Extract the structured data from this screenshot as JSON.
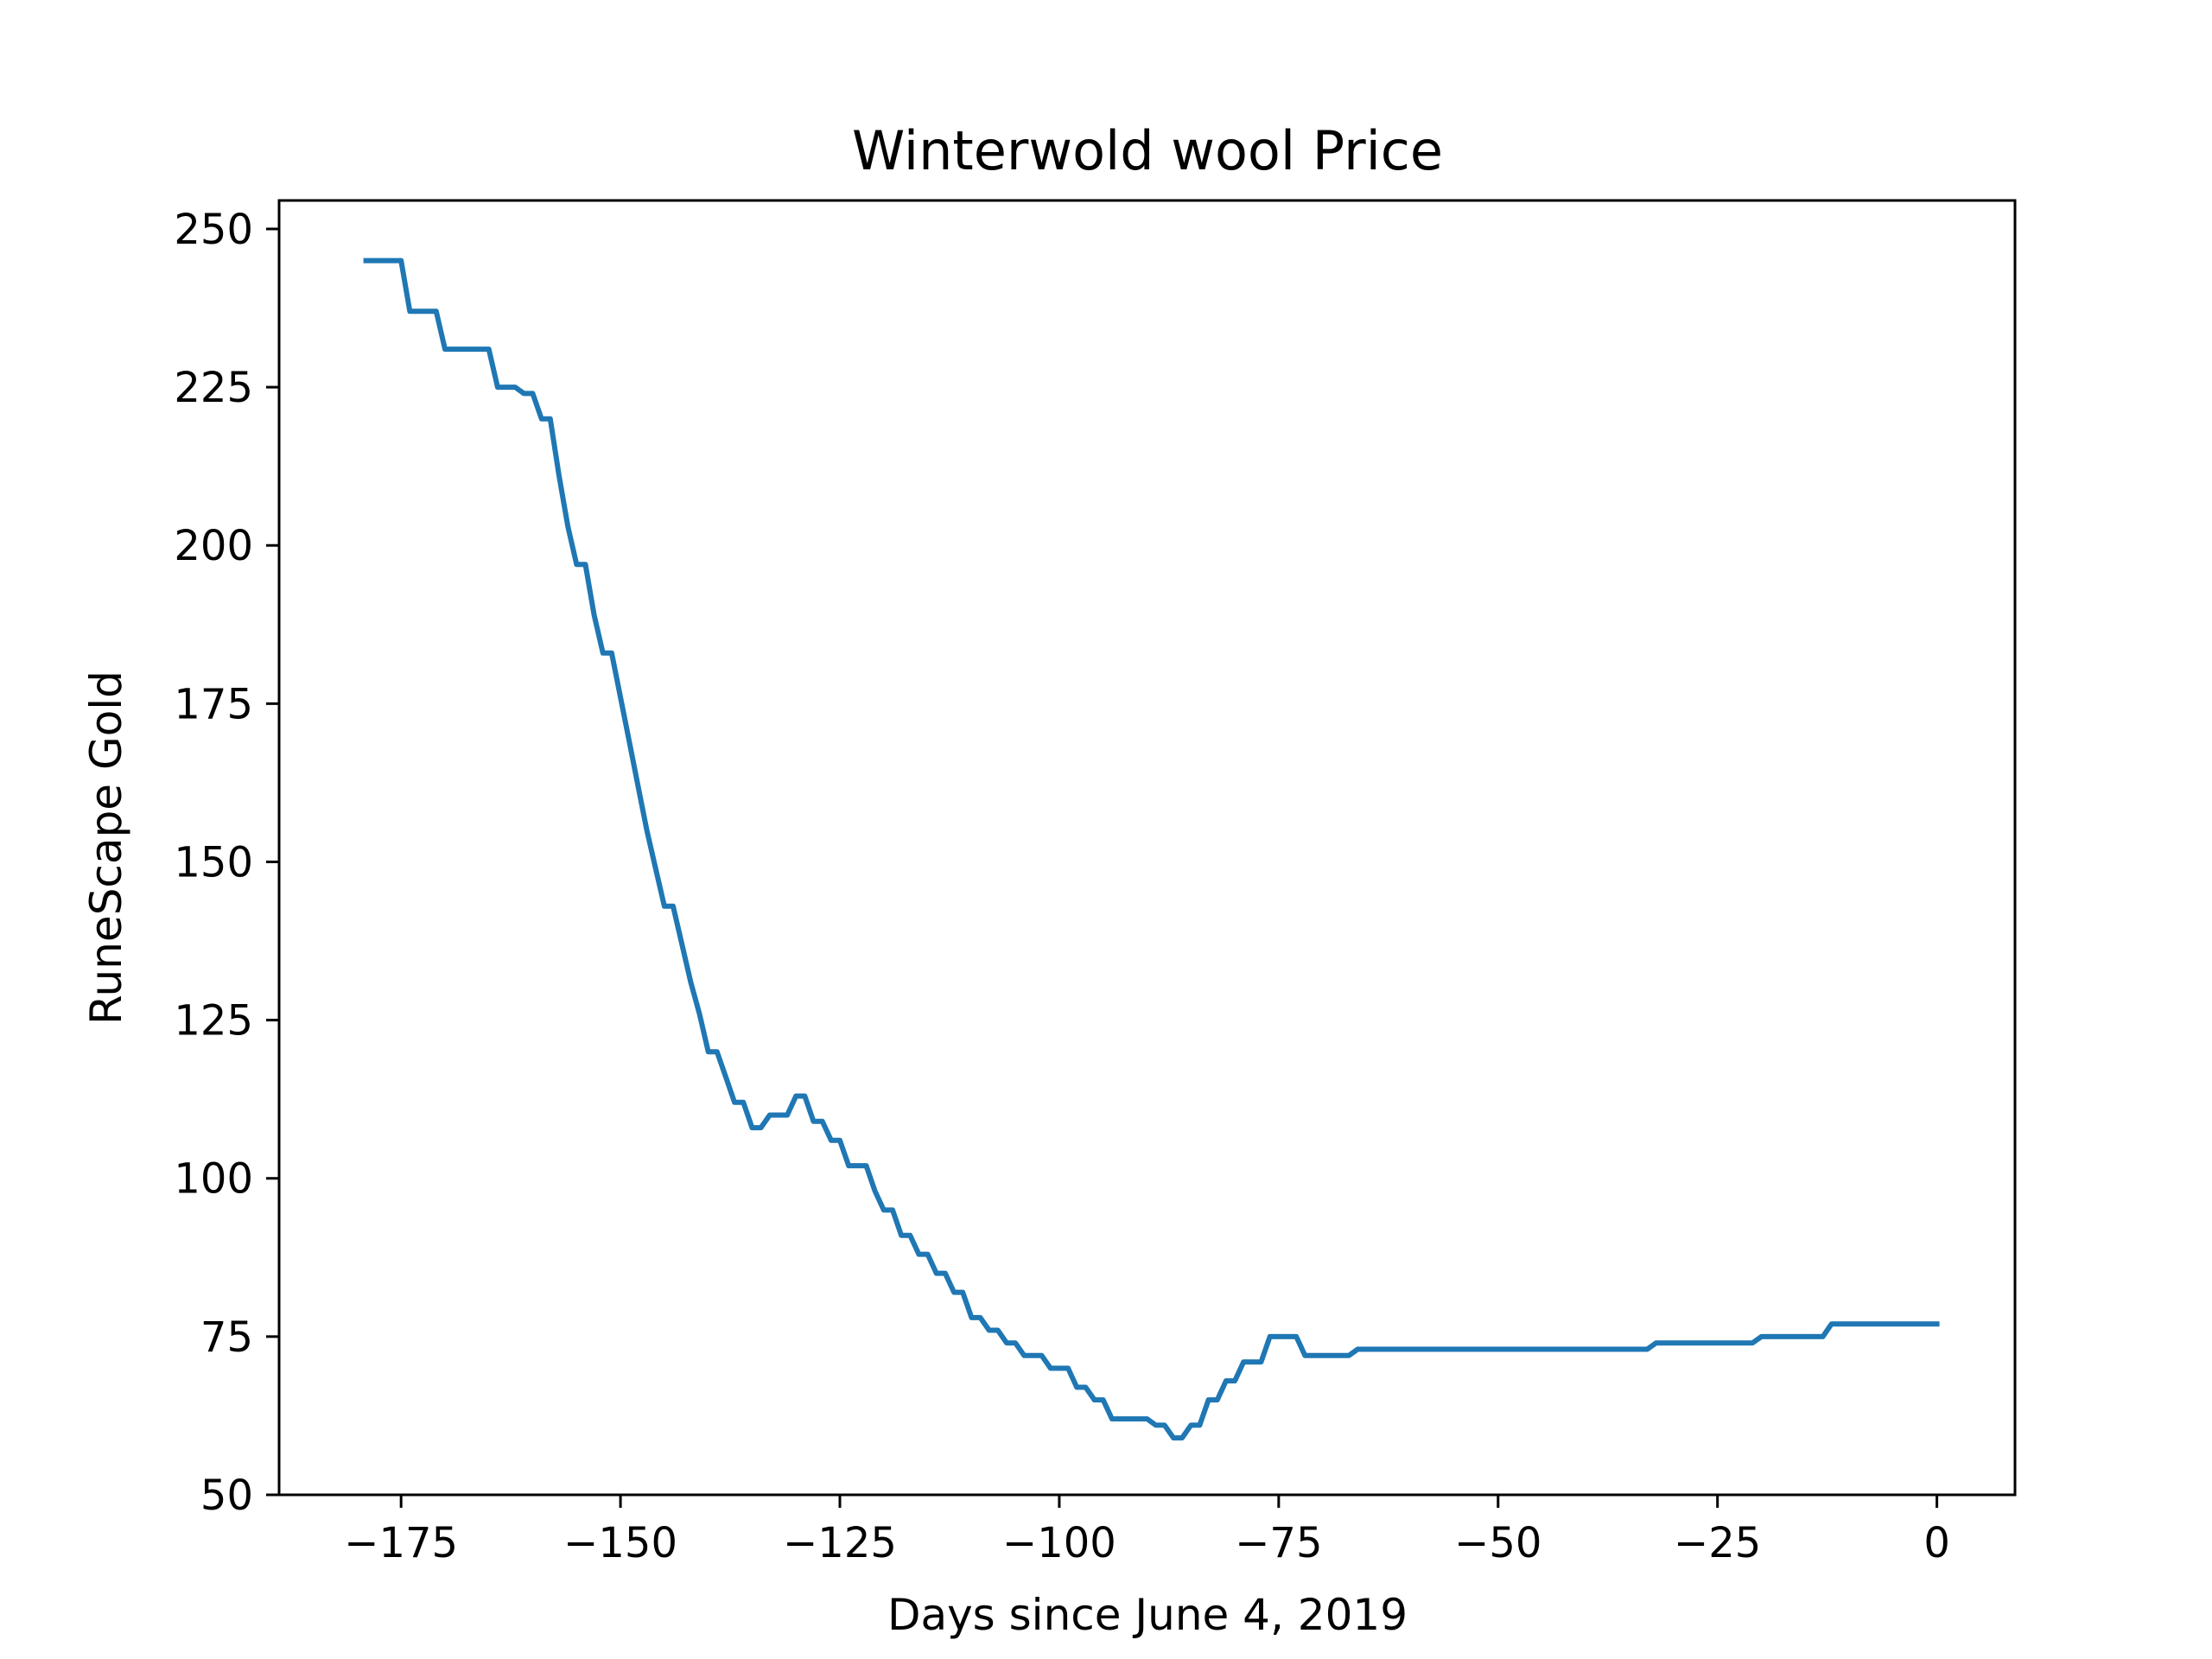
{
  "chart_data": {
    "type": "line",
    "title": "Winterwold wool Price",
    "xlabel": "Days since June 4, 2019",
    "ylabel": "RuneScape Gold",
    "xlim": [
      -188.9,
      8.9
    ],
    "ylim": [
      50,
      254.5
    ],
    "x_ticks": [
      -175,
      -150,
      -125,
      -100,
      -75,
      -50,
      -25,
      0
    ],
    "x_tick_labels": [
      "−175",
      "−150",
      "−125",
      "−100",
      "−75",
      "−50",
      "−25",
      "0"
    ],
    "y_ticks": [
      50,
      75,
      100,
      125,
      150,
      175,
      200,
      225,
      250
    ],
    "y_tick_labels": [
      "50",
      "75",
      "100",
      "125",
      "150",
      "175",
      "200",
      "225",
      "250"
    ],
    "grid": false,
    "legend": "none",
    "series": [
      {
        "color": "#1f77b4",
        "x": [
          -179,
          -175,
          -174,
          -171,
          -170,
          -165,
          -164,
          -162,
          -161,
          -160,
          -159,
          -158,
          -157,
          -156,
          -155,
          -154,
          -153,
          -152,
          -151,
          -150,
          -149,
          -148,
          -147,
          -146,
          -145,
          -144,
          -143,
          -142,
          -141,
          -140,
          -139,
          -138,
          -137,
          -136,
          -135,
          -134,
          -133,
          -132,
          -131,
          -130,
          -129,
          -128,
          -127,
          -126,
          -125,
          -124,
          -123,
          -122,
          -121,
          -120,
          -119,
          -118,
          -117,
          -116,
          -115,
          -114,
          -113,
          -112,
          -111,
          -110,
          -109,
          -108,
          -107,
          -106,
          -105,
          -104,
          -103,
          -102,
          -101,
          -100,
          -99,
          -98,
          -97,
          -96,
          -95,
          -94,
          -90,
          -89,
          -88,
          -87,
          -86,
          -85,
          -84,
          -83,
          -82,
          -81,
          -80,
          -79,
          -78,
          -77,
          -76,
          -75,
          -74,
          -73,
          -72,
          -71,
          -70,
          -69,
          -68,
          -67,
          -66,
          -65,
          -60,
          -50,
          -40,
          -33,
          -32,
          -25,
          -22,
          -21,
          -20,
          -14,
          -13,
          -12,
          0
        ],
        "y": [
          245,
          245,
          237,
          237,
          231,
          231,
          225,
          225,
          224,
          224,
          220,
          220,
          211,
          203,
          197,
          197,
          189,
          183,
          183,
          176,
          169,
          162,
          155,
          149,
          143,
          143,
          137,
          131,
          126,
          120,
          120,
          116,
          112,
          112,
          108,
          108,
          110,
          110,
          110,
          113,
          113,
          109,
          109,
          106,
          106,
          102,
          102,
          102,
          98,
          95,
          95,
          91,
          91,
          88,
          88,
          85,
          85,
          82,
          82,
          78,
          78,
          76,
          76,
          74,
          74,
          72,
          72,
          72,
          70,
          70,
          70,
          67,
          67,
          65,
          65,
          62,
          62,
          61,
          61,
          59,
          59,
          61,
          61,
          65,
          65,
          68,
          68,
          71,
          71,
          71,
          75,
          75,
          75,
          75,
          72,
          72,
          72,
          72,
          72,
          72,
          73,
          73,
          73,
          73,
          73,
          73,
          74,
          74,
          74,
          74,
          75,
          75,
          75,
          77,
          77
        ]
      }
    ]
  }
}
